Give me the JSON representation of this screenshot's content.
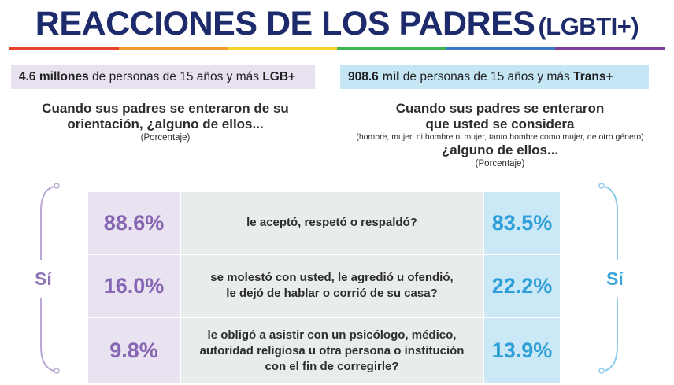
{
  "title": {
    "main": "REACCIONES DE LOS PADRES",
    "sub": "(LGBTI+)"
  },
  "rainbow_colors": [
    "#e8412c",
    "#f29a2e",
    "#f7d22e",
    "#3fb550",
    "#3a7bc8",
    "#7f3f98"
  ],
  "left": {
    "population_value": "4.6 millones",
    "population_text": " de personas de 15 años y más ",
    "population_group": "LGB+",
    "question": "Cuando sus padres se enteraron de su orientación, ¿alguno de ellos...",
    "unit": "(Porcentaje)",
    "si_label": "Sí"
  },
  "right": {
    "population_value": "908.6 mil",
    "population_text": " de personas de 15 años y más ",
    "population_group": "Trans+",
    "question_line1": "Cuando sus padres se enteraron",
    "question_line2": "que usted se considera",
    "question_note": "(hombre, mujer, ni hombre ni mujer, tanto hombre como mujer, de otro género)",
    "question_line3": "¿alguno de ellos...",
    "unit": "(Porcentaje)",
    "si_label": "Sí"
  },
  "chart_data": {
    "type": "table",
    "columns": [
      "LGB+",
      "",
      "Trans+"
    ],
    "rows": [
      {
        "lgb": "88.6%",
        "question": "le aceptó, respetó o respaldó?",
        "trans": "83.5%"
      },
      {
        "lgb": "16.0%",
        "question": "se molestó con usted, le agredió u ofendió,\nle dejó de hablar o corrió de su casa?",
        "trans": "22.2%"
      },
      {
        "lgb": "9.8%",
        "question": "le obligó a asistir con un psicólogo, médico,\nautoridad religiosa u otra persona o institución\ncon el fin de corregirle?",
        "trans": "13.9%"
      }
    ],
    "series": [
      {
        "name": "LGB+",
        "values": [
          88.6,
          16.0,
          9.8
        ]
      },
      {
        "name": "Trans+",
        "values": [
          83.5,
          22.2,
          13.9
        ]
      }
    ],
    "colors": {
      "lgb": "#8666b2",
      "trans": "#2f9fd8",
      "lgb_bg": "#e9e3f1",
      "trans_bg": "#cbe8f6",
      "question_bg": "#e9ecec"
    }
  }
}
